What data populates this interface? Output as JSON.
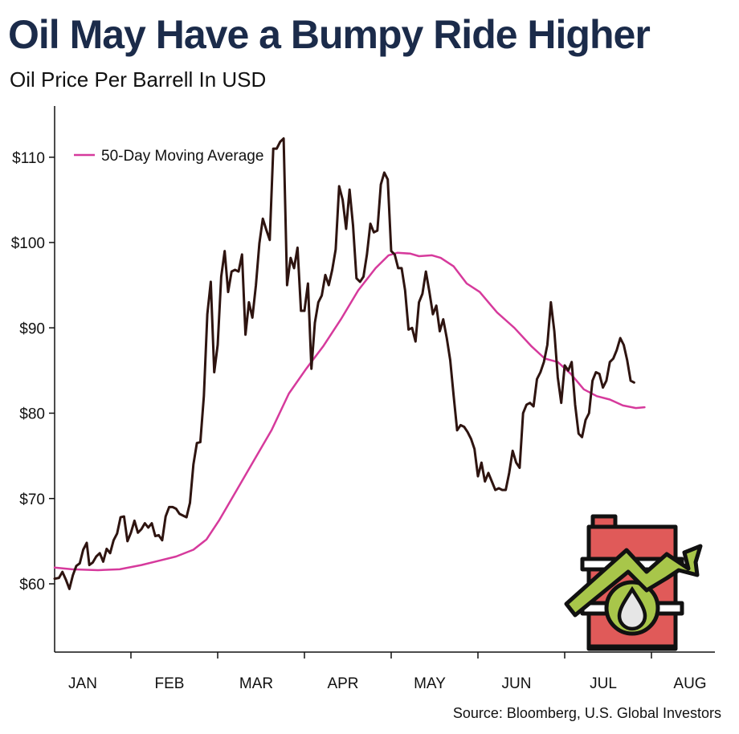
{
  "header": {
    "title": "Oil May Have a Bumpy Ride Higher",
    "subtitle": "Oil Price Per Barrell In USD"
  },
  "footer": {
    "source": "Source: Bloomberg, U.S. Global Investors"
  },
  "colors": {
    "price_line": "#2e1410",
    "moving_average_line": "#d63a9c",
    "axis": "#111111",
    "barrel_fill": "#e05a59",
    "barrel_outline": "#111111",
    "arrow_fill": "#a8c64a",
    "drop_fill": "#e6e6e6"
  },
  "icons": [
    "oil-barrel-icon",
    "rising-arrow-icon",
    "oil-drop-icon"
  ],
  "chart_data": {
    "type": "line",
    "title": "Oil May Have a Bumpy Ride Higher",
    "subtitle": "Oil Price Per Barrell In USD",
    "xlabel": "",
    "ylabel": "",
    "x_months": [
      "JAN",
      "FEB",
      "MAR",
      "APR",
      "MAY",
      "JUN",
      "JUL",
      "AUG"
    ],
    "y_ticks": [
      60,
      70,
      80,
      90,
      100,
      110
    ],
    "y_tick_labels": [
      "$60",
      "$70",
      "$80",
      "$90",
      "$100",
      "$110"
    ],
    "ylim": [
      52,
      116
    ],
    "x_range": [
      0,
      7.6
    ],
    "grid": false,
    "legend_position": "top-left",
    "series": [
      {
        "name": "",
        "points": [
          [
            0.0,
            60.6
          ],
          [
            0.05,
            60.7
          ],
          [
            0.09,
            61.4
          ],
          [
            0.13,
            60.5
          ],
          [
            0.17,
            59.4
          ],
          [
            0.21,
            61.0
          ],
          [
            0.25,
            62.1
          ],
          [
            0.29,
            62.4
          ],
          [
            0.33,
            64.0
          ],
          [
            0.37,
            64.8
          ],
          [
            0.4,
            62.2
          ],
          [
            0.44,
            62.5
          ],
          [
            0.48,
            63.2
          ],
          [
            0.52,
            63.6
          ],
          [
            0.56,
            62.6
          ],
          [
            0.6,
            64.1
          ],
          [
            0.64,
            63.6
          ],
          [
            0.68,
            65.1
          ],
          [
            0.72,
            65.9
          ],
          [
            0.76,
            67.8
          ],
          [
            0.8,
            67.9
          ],
          [
            0.84,
            65.0
          ],
          [
            0.88,
            66.0
          ],
          [
            0.92,
            67.4
          ],
          [
            0.96,
            66.0
          ],
          [
            1.0,
            66.4
          ],
          [
            1.04,
            67.1
          ],
          [
            1.08,
            66.6
          ],
          [
            1.12,
            67.1
          ],
          [
            1.16,
            65.6
          ],
          [
            1.2,
            65.7
          ],
          [
            1.24,
            65.1
          ],
          [
            1.28,
            67.9
          ],
          [
            1.32,
            69.0
          ],
          [
            1.36,
            69.0
          ],
          [
            1.4,
            68.8
          ],
          [
            1.44,
            68.2
          ],
          [
            1.48,
            68.0
          ],
          [
            1.52,
            67.8
          ],
          [
            1.56,
            69.5
          ],
          [
            1.6,
            74.0
          ],
          [
            1.64,
            76.5
          ],
          [
            1.68,
            76.6
          ],
          [
            1.72,
            82.0
          ],
          [
            1.76,
            91.6
          ],
          [
            1.8,
            95.4
          ],
          [
            1.84,
            84.8
          ],
          [
            1.88,
            88.0
          ],
          [
            1.92,
            96.0
          ],
          [
            1.96,
            99.0
          ],
          [
            2.0,
            94.2
          ],
          [
            2.04,
            96.6
          ],
          [
            2.08,
            96.8
          ],
          [
            2.12,
            96.6
          ],
          [
            2.16,
            98.6
          ],
          [
            2.2,
            89.2
          ],
          [
            2.24,
            93.0
          ],
          [
            2.28,
            91.2
          ],
          [
            2.32,
            95.0
          ],
          [
            2.36,
            99.9
          ],
          [
            2.4,
            102.8
          ],
          [
            2.44,
            101.5
          ],
          [
            2.48,
            100.3
          ],
          [
            2.52,
            111.0
          ],
          [
            2.56,
            111.0
          ],
          [
            2.6,
            111.8
          ],
          [
            2.64,
            112.2
          ],
          [
            2.68,
            95.0
          ],
          [
            2.72,
            98.2
          ],
          [
            2.76,
            97.0
          ],
          [
            2.8,
            99.4
          ],
          [
            2.84,
            92.0
          ],
          [
            2.88,
            92.0
          ],
          [
            2.92,
            95.2
          ],
          [
            2.96,
            85.2
          ],
          [
            3.0,
            90.6
          ],
          [
            3.04,
            93.0
          ],
          [
            3.08,
            93.8
          ],
          [
            3.12,
            96.2
          ],
          [
            3.16,
            95.0
          ],
          [
            3.2,
            96.8
          ],
          [
            3.24,
            99.2
          ],
          [
            3.28,
            106.6
          ],
          [
            3.32,
            105.0
          ],
          [
            3.36,
            101.6
          ],
          [
            3.4,
            106.2
          ],
          [
            3.44,
            102.0
          ],
          [
            3.48,
            95.8
          ],
          [
            3.52,
            95.4
          ],
          [
            3.56,
            96.0
          ],
          [
            3.6,
            98.6
          ],
          [
            3.64,
            102.2
          ],
          [
            3.68,
            101.2
          ],
          [
            3.72,
            101.4
          ],
          [
            3.76,
            106.8
          ],
          [
            3.8,
            108.2
          ],
          [
            3.84,
            107.4
          ],
          [
            3.88,
            99.0
          ],
          [
            3.92,
            98.6
          ],
          [
            3.96,
            97.0
          ],
          [
            4.0,
            97.0
          ],
          [
            4.04,
            94.4
          ],
          [
            4.08,
            89.8
          ],
          [
            4.12,
            90.0
          ],
          [
            4.16,
            88.4
          ],
          [
            4.2,
            93.0
          ],
          [
            4.24,
            94.0
          ],
          [
            4.28,
            96.6
          ],
          [
            4.32,
            94.2
          ],
          [
            4.36,
            91.6
          ],
          [
            4.4,
            92.6
          ],
          [
            4.44,
            89.6
          ],
          [
            4.48,
            91.0
          ],
          [
            4.52,
            88.8
          ],
          [
            4.56,
            86.2
          ],
          [
            4.6,
            82.0
          ],
          [
            4.64,
            78.0
          ],
          [
            4.68,
            78.6
          ],
          [
            4.72,
            78.4
          ],
          [
            4.76,
            77.8
          ],
          [
            4.8,
            77.0
          ],
          [
            4.84,
            75.8
          ],
          [
            4.88,
            72.6
          ],
          [
            4.92,
            74.2
          ],
          [
            4.96,
            72.0
          ],
          [
            5.0,
            73.0
          ],
          [
            5.04,
            72.0
          ],
          [
            5.08,
            71.0
          ],
          [
            5.12,
            71.2
          ],
          [
            5.16,
            71.0
          ],
          [
            5.2,
            71.0
          ],
          [
            5.24,
            73.0
          ],
          [
            5.28,
            75.6
          ],
          [
            5.32,
            74.2
          ],
          [
            5.36,
            73.6
          ],
          [
            5.4,
            80.0
          ],
          [
            5.44,
            81.0
          ],
          [
            5.48,
            81.2
          ],
          [
            5.52,
            80.8
          ],
          [
            5.56,
            84.0
          ],
          [
            5.6,
            84.8
          ],
          [
            5.64,
            86.0
          ],
          [
            5.68,
            88.0
          ],
          [
            5.72,
            93.0
          ],
          [
            5.76,
            89.6
          ],
          [
            5.8,
            84.2
          ],
          [
            5.84,
            81.2
          ],
          [
            5.88,
            85.6
          ],
          [
            5.92,
            85.0
          ],
          [
            5.96,
            86.0
          ],
          [
            6.0,
            81.0
          ],
          [
            6.04,
            77.6
          ],
          [
            6.08,
            77.2
          ],
          [
            6.12,
            79.2
          ],
          [
            6.16,
            80.0
          ],
          [
            6.2,
            83.8
          ],
          [
            6.24,
            84.8
          ],
          [
            6.28,
            84.6
          ],
          [
            6.32,
            83.0
          ],
          [
            6.36,
            83.8
          ],
          [
            6.4,
            86.0
          ],
          [
            6.44,
            86.4
          ],
          [
            6.48,
            87.4
          ],
          [
            6.52,
            88.8
          ],
          [
            6.56,
            88.0
          ],
          [
            6.6,
            86.2
          ],
          [
            6.64,
            83.8
          ],
          [
            6.68,
            83.6
          ]
        ]
      },
      {
        "name": "50-Day Moving Average",
        "points": [
          [
            0.0,
            61.9
          ],
          [
            0.2,
            61.7
          ],
          [
            0.5,
            61.6
          ],
          [
            0.75,
            61.7
          ],
          [
            1.0,
            62.2
          ],
          [
            1.2,
            62.7
          ],
          [
            1.4,
            63.2
          ],
          [
            1.6,
            64.0
          ],
          [
            1.75,
            65.2
          ],
          [
            1.9,
            67.5
          ],
          [
            2.1,
            71.0
          ],
          [
            2.3,
            74.5
          ],
          [
            2.5,
            78.0
          ],
          [
            2.7,
            82.3
          ],
          [
            2.9,
            85.2
          ],
          [
            3.1,
            87.9
          ],
          [
            3.3,
            91.0
          ],
          [
            3.5,
            94.4
          ],
          [
            3.7,
            97.0
          ],
          [
            3.85,
            98.5
          ],
          [
            3.95,
            98.8
          ],
          [
            4.1,
            98.7
          ],
          [
            4.2,
            98.4
          ],
          [
            4.35,
            98.5
          ],
          [
            4.45,
            98.2
          ],
          [
            4.6,
            97.2
          ],
          [
            4.75,
            95.2
          ],
          [
            4.9,
            94.2
          ],
          [
            5.1,
            91.8
          ],
          [
            5.3,
            90.0
          ],
          [
            5.5,
            87.8
          ],
          [
            5.65,
            86.4
          ],
          [
            5.8,
            86.0
          ],
          [
            5.95,
            84.6
          ],
          [
            6.1,
            82.8
          ],
          [
            6.25,
            82.0
          ],
          [
            6.4,
            81.6
          ],
          [
            6.55,
            80.9
          ],
          [
            6.7,
            80.6
          ],
          [
            6.8,
            80.7
          ]
        ]
      }
    ]
  }
}
